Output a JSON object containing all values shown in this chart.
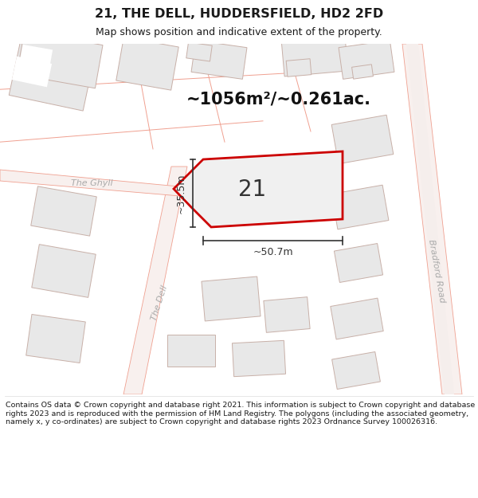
{
  "title": "21, THE DELL, HUDDERSFIELD, HD2 2FD",
  "subtitle": "Map shows position and indicative extent of the property.",
  "area_text": "~1056m²/~0.261ac.",
  "plot_label": "21",
  "dim_width": "~50.7m",
  "dim_height": "~35.5m",
  "road_label_1": "The Ghyll",
  "road_label_2": "The Dell",
  "road_label_3": "Bradford Road",
  "footer": "Contains OS data © Crown copyright and database right 2021. This information is subject to Crown copyright and database rights 2023 and is reproduced with the permission of HM Land Registry. The polygons (including the associated geometry, namely x, y co-ordinates) are subject to Crown copyright and database rights 2023 Ordnance Survey 100026316.",
  "map_bg": "#ffffff",
  "plot_fill": "#f0f0f0",
  "plot_edge": "#cc0000",
  "road_line": "#f0a090",
  "building_fill": "#e8e8e8",
  "building_edge": "#c8b0a8",
  "road_label_color": "#aaaaaa",
  "title_color": "#1a1a1a",
  "footer_color": "#1a1a1a",
  "dim_color": "#333333",
  "area_color": "#111111"
}
